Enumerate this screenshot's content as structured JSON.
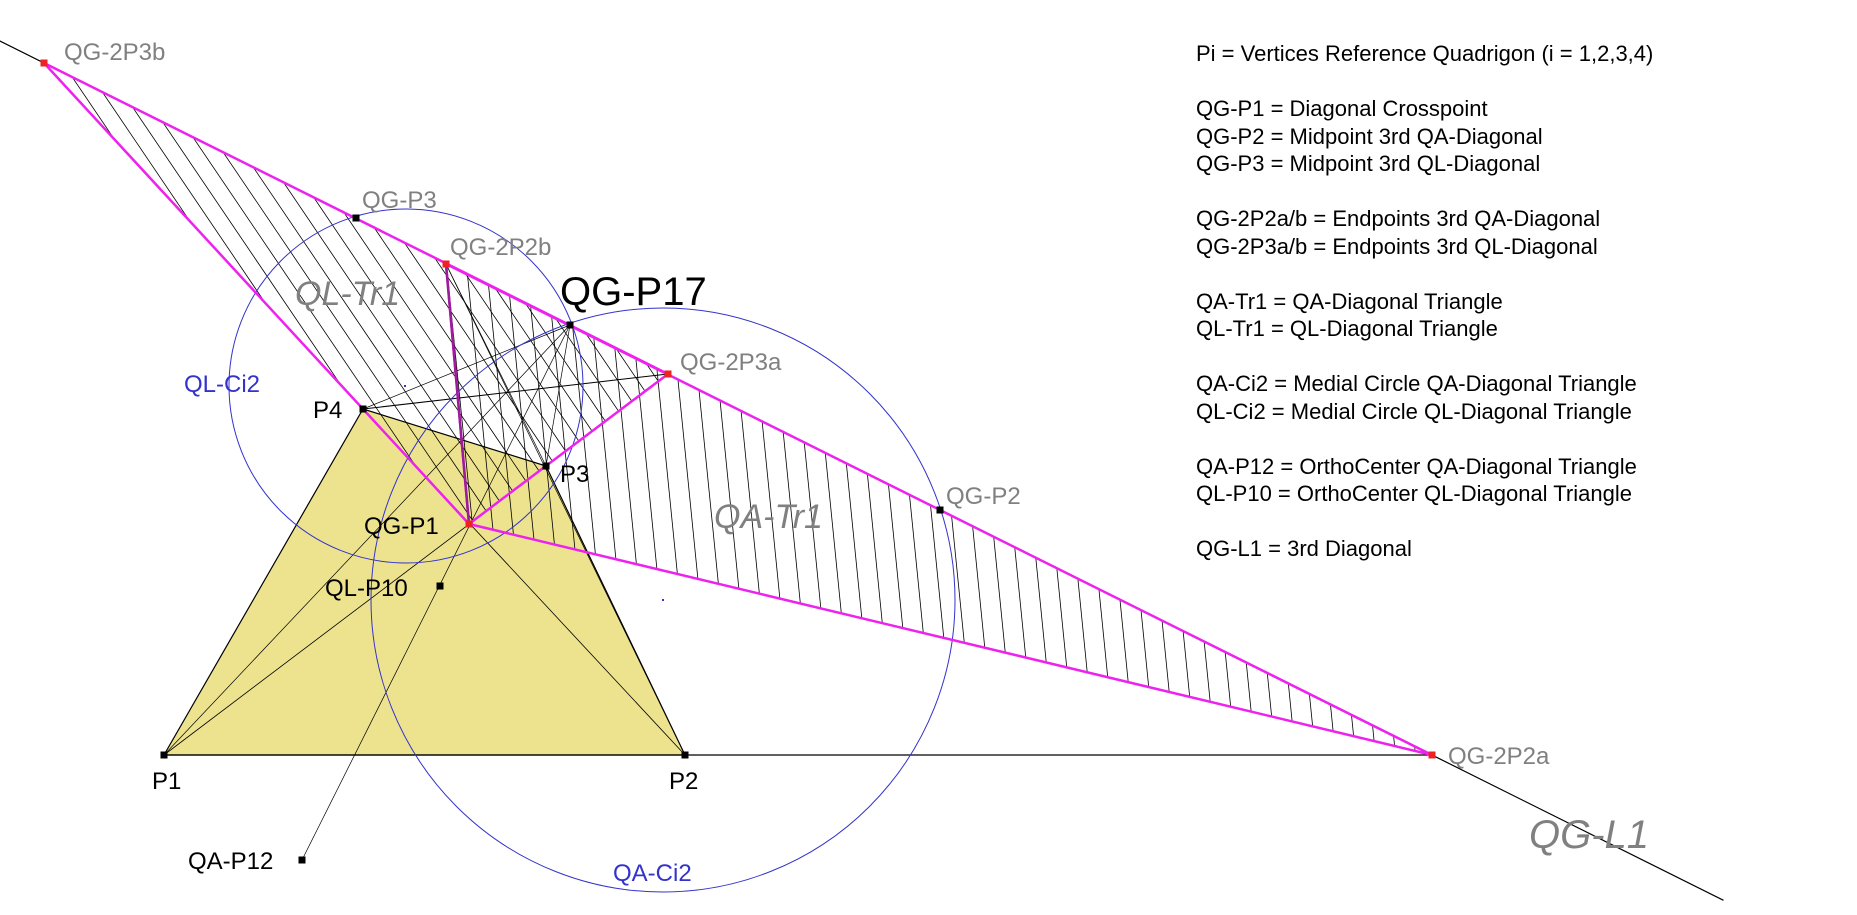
{
  "points": {
    "P1": {
      "label": "P1",
      "x": 164,
      "y": 755
    },
    "P2": {
      "label": "P2",
      "x": 685,
      "y": 755
    },
    "P3": {
      "label": "P3",
      "x": 546,
      "y": 466
    },
    "P4": {
      "label": "P4",
      "x": 363,
      "y": 409
    },
    "QG_P1": {
      "label": "QG-P1",
      "x": 469,
      "y": 524
    },
    "QG_P2": {
      "label": "QG-P2",
      "x": 940,
      "y": 510
    },
    "QG_P3": {
      "label": "QG-P3",
      "x": 356,
      "y": 218
    },
    "QG_P17": {
      "label": "QG-P17",
      "x": 570,
      "y": 325
    },
    "QG_2P2a": {
      "label": "QG-2P2a",
      "x": 1432,
      "y": 755
    },
    "QG_2P2b": {
      "label": "QG-2P2b",
      "x": 446,
      "y": 264
    },
    "QG_2P3a": {
      "label": "QG-2P3a",
      "x": 668,
      "y": 374
    },
    "QG_2P3b": {
      "label": "QG-2P3b",
      "x": 44,
      "y": 63
    },
    "QL_P10": {
      "label": "QL-P10",
      "x": 440,
      "y": 586
    },
    "QA_P12": {
      "label": "QA-P12",
      "x": 302,
      "y": 860
    }
  },
  "shape_labels": {
    "QL_Tr1": "QL-Tr1",
    "QA_Tr1": "QA-Tr1",
    "QL_Ci2": "QL-Ci2",
    "QA_Ci2": "QA-Ci2",
    "QG_L1": "QG-L1"
  },
  "legend": [
    [
      "Pi = Vertices Reference Quadrigon (i = 1,2,3,4)"
    ],
    [
      "QG-P1 = Diagonal Crosspoint",
      "QG-P2 = Midpoint 3rd QA-Diagonal",
      "QG-P3 = Midpoint 3rd QL-Diagonal"
    ],
    [
      "QG-2P2a/b = Endpoints 3rd QA-Diagonal",
      "QG-2P3a/b = Endpoints 3rd QL-Diagonal"
    ],
    [
      "QA-Tr1 = QA-Diagonal Triangle",
      "QL-Tr1 = QL-Diagonal Triangle"
    ],
    [
      "QA-Ci2 = Medial Circle QA-Diagonal Triangle",
      "QL-Ci2 = Medial Circle QL-Diagonal Triangle"
    ],
    [
      "QA-P12 = OrthoCenter QA-Diagonal Triangle",
      "QL-P10 = OrthoCenter QL-Diagonal Triangle"
    ],
    [
      "QG-L1 = 3rd Diagonal"
    ]
  ],
  "colors": {
    "quadrigon_fill": "#ede38f",
    "triangle_edge": "#ee22ee",
    "circle": "#3333cc",
    "gray_label": "#808080",
    "red_point": "#ee2222",
    "black": "#000000"
  }
}
